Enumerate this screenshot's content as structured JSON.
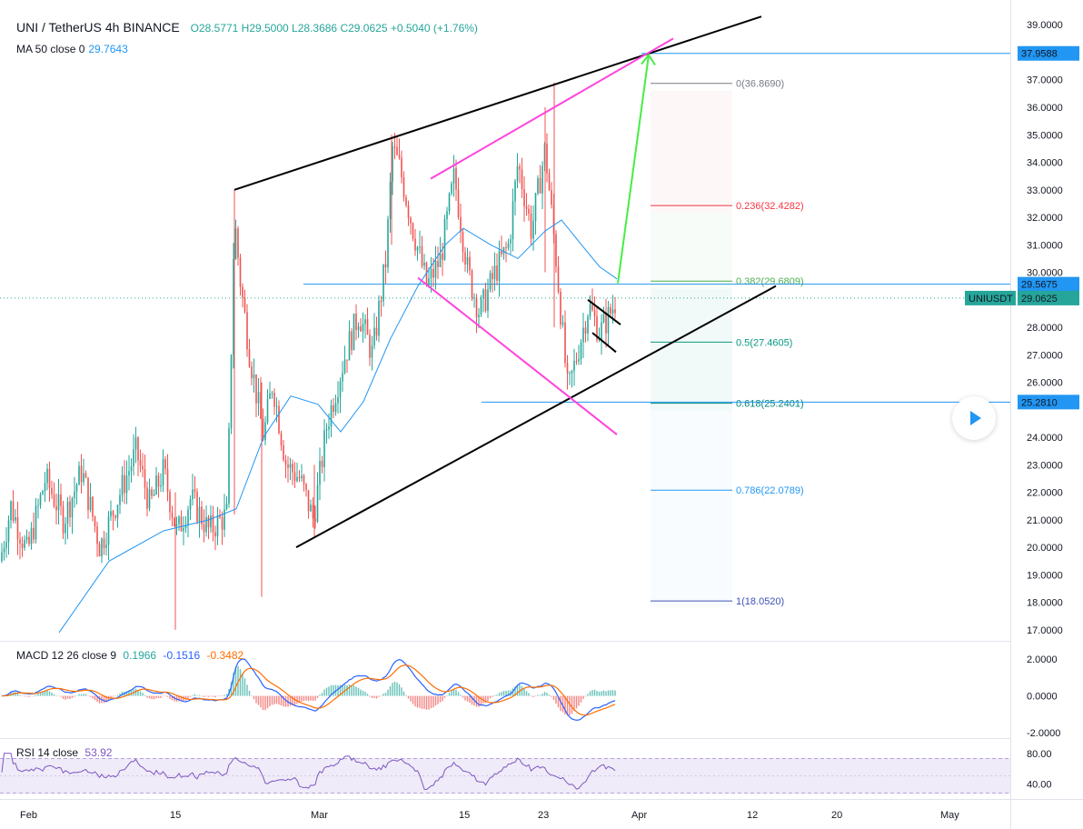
{
  "header": {
    "symbol": "UNI / TetherUS",
    "interval": "4h",
    "exchange": "BINANCE",
    "ohlc": {
      "o": "O28.5771",
      "h": "H29.5000",
      "l": "L28.3686",
      "c": "C29.0625",
      "change": "+0.5040 (+1.76%)"
    },
    "ma": {
      "label": "MA 50 close 0",
      "value": "29.7643"
    }
  },
  "macd": {
    "label": "MACD 12 26 close 9",
    "v1": "0.1966",
    "v2": "-0.1516",
    "v3": "-0.3482"
  },
  "rsi": {
    "label": "RSI 14 close",
    "value": "53.92"
  },
  "price_axis": [
    "39.0000",
    "37.0000",
    "36.0000",
    "35.0000",
    "34.0000",
    "33.0000",
    "32.0000",
    "31.0000",
    "30.0000",
    "28.0000",
    "27.0000",
    "26.0000",
    "24.0000",
    "23.0000",
    "22.0000",
    "21.0000",
    "20.0000",
    "19.0000",
    "18.0000",
    "17.0000"
  ],
  "macd_axis": [
    "2.0000",
    "0.0000",
    "-2.0000"
  ],
  "rsi_axis": [
    "80.00",
    "40.00"
  ],
  "time_axis": [
    "Feb",
    "15",
    "Mar",
    "15",
    "23",
    "Apr",
    "12",
    "20",
    "May"
  ],
  "price_tags": [
    {
      "text": "37.9588",
      "color": "#2196f3"
    },
    {
      "text": "29.5675",
      "color": "#2196f3"
    },
    {
      "text": "UNIUSDT",
      "color": "#26a69a"
    },
    {
      "text": "29.0625",
      "color": "#26a69a"
    },
    {
      "text": "25.2810",
      "color": "#2196f3"
    }
  ],
  "fib_levels": [
    {
      "label": "0(36.8690)",
      "value": 36.869,
      "color": "#787b86"
    },
    {
      "label": "0.236(32.4282)",
      "value": 32.4282,
      "color": "#f23645"
    },
    {
      "label": "0.382(29.6809)",
      "value": 29.6809,
      "color": "#4caf50"
    },
    {
      "label": "0.5(27.4605)",
      "value": 27.4605,
      "color": "#089981"
    },
    {
      "label": "0.618(25.2401)",
      "value": 25.2401,
      "color": "#00897b"
    },
    {
      "label": "0.786(22.0789)",
      "value": 22.0789,
      "color": "#2196f3"
    },
    {
      "label": "1(18.0520)",
      "value": 18.052,
      "color": "#3f51b5"
    }
  ],
  "chart_data": {
    "type": "candlestick",
    "ylim": [
      16.6,
      39.9
    ],
    "rsi_ylim": [
      20,
      100
    ],
    "macd_ylim": [
      -2.3,
      3.0
    ],
    "colors": {
      "up": "#26a69a",
      "down": "#ef5350",
      "ma": "#2196f3",
      "macd": "#2962ff",
      "signal": "#ff6d00",
      "rsi": "#7e57c2"
    },
    "close_path": [
      [
        0,
        19.5
      ],
      [
        12,
        21.5
      ],
      [
        30,
        19.8
      ],
      [
        50,
        22.5
      ],
      [
        70,
        21.0
      ],
      [
        90,
        22.8
      ],
      [
        110,
        20.0
      ],
      [
        130,
        21.8
      ],
      [
        150,
        23.5
      ],
      [
        165,
        21.5
      ],
      [
        180,
        22.8
      ],
      [
        195,
        20.5
      ],
      [
        210,
        21.8
      ],
      [
        230,
        20.6
      ],
      [
        250,
        21.2
      ],
      [
        258,
        32.0
      ],
      [
        265,
        29.5
      ],
      [
        275,
        27.0
      ],
      [
        290,
        24.0
      ],
      [
        300,
        26.0
      ],
      [
        315,
        23.0
      ],
      [
        330,
        22.5
      ],
      [
        345,
        21.0
      ],
      [
        360,
        24.5
      ],
      [
        380,
        27.0
      ],
      [
        395,
        28.5
      ],
      [
        410,
        27.0
      ],
      [
        425,
        30.5
      ],
      [
        432,
        34.5
      ],
      [
        440,
        33.8
      ],
      [
        455,
        31.5
      ],
      [
        470,
        29.5
      ],
      [
        485,
        30.5
      ],
      [
        500,
        33.5
      ],
      [
        515,
        30.0
      ],
      [
        528,
        28.5
      ],
      [
        545,
        30.0
      ],
      [
        560,
        31.0
      ],
      [
        570,
        34.0
      ],
      [
        585,
        31.5
      ],
      [
        600,
        34.5
      ],
      [
        612,
        30.5
      ],
      [
        625,
        25.6
      ],
      [
        635,
        27.0
      ],
      [
        648,
        28.8
      ],
      [
        660,
        27.8
      ],
      [
        670,
        28.4
      ],
      [
        679,
        29.06
      ]
    ],
    "ma50": [
      [
        65,
        16.9
      ],
      [
        120,
        19.5
      ],
      [
        180,
        20.6
      ],
      [
        230,
        21.0
      ],
      [
        260,
        21.4
      ],
      [
        290,
        24.0
      ],
      [
        320,
        25.5
      ],
      [
        350,
        25.2
      ],
      [
        375,
        24.2
      ],
      [
        400,
        25.3
      ],
      [
        430,
        27.6
      ],
      [
        460,
        29.5
      ],
      [
        490,
        31.0
      ],
      [
        510,
        31.6
      ],
      [
        540,
        31.0
      ],
      [
        570,
        30.5
      ],
      [
        600,
        31.5
      ],
      [
        618,
        31.9
      ],
      [
        640,
        31.0
      ],
      [
        660,
        30.2
      ],
      [
        679,
        29.76
      ]
    ],
    "pattern_lines": [
      {
        "name": "channel-upper",
        "color": "#000000",
        "points": [
          [
            258,
            33.0
          ],
          [
            838,
            39.3
          ]
        ]
      },
      {
        "name": "channel-lower",
        "color": "#000000",
        "points": [
          [
            326,
            20.0
          ],
          [
            854,
            29.5
          ]
        ]
      },
      {
        "name": "magenta-upper",
        "color": "#ff44dd",
        "points": [
          [
            474,
            33.4
          ],
          [
            741,
            38.5
          ]
        ]
      },
      {
        "name": "magenta-lower",
        "color": "#ff44dd",
        "points": [
          [
            460,
            29.8
          ],
          [
            679,
            24.1
          ]
        ]
      },
      {
        "name": "flag-upper",
        "color": "#000000",
        "points": [
          [
            647,
            29.0
          ],
          [
            683,
            28.1
          ]
        ]
      },
      {
        "name": "flag-lower",
        "color": "#000000",
        "points": [
          [
            652,
            27.8
          ],
          [
            678,
            27.1
          ]
        ]
      }
    ],
    "target_arrow": {
      "color": "#44ee44",
      "from": [
        680,
        29.6
      ],
      "to": [
        714,
        37.9
      ]
    },
    "hlines": [
      {
        "name": "resistance-37",
        "value": 37.9588,
        "color": "#2196f3",
        "from_x": 706
      },
      {
        "name": "mid-29",
        "value": 29.5675,
        "color": "#2196f3",
        "from_x": 334
      },
      {
        "name": "support-25",
        "value": 25.281,
        "color": "#2196f3",
        "from_x": 530
      },
      {
        "name": "last-price",
        "value": 29.0625,
        "color": "#26a69a",
        "from_x": 0,
        "dotted": true
      }
    ]
  }
}
